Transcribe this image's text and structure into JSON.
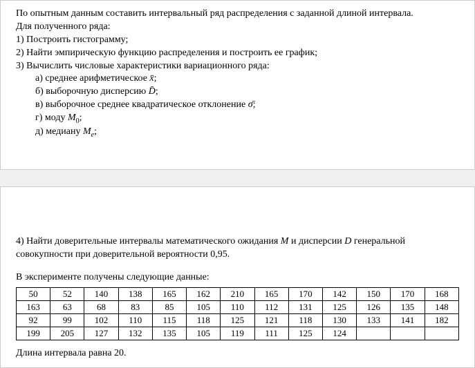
{
  "pageTop": {
    "intro1": "По опытным данным составить интервальный ряд распределения с заданной длиной интервала.",
    "intro2": "Для полученного ряда:",
    "item1": "1) Построить гистограмму;",
    "item2": "2) Найти эмпирическую функцию распределения и построить ее график;",
    "item3": "3) Вычислить числовые характеристики вариационного ряда:",
    "sub_a_pre": "а) среднее арифметическое ",
    "sub_a_var": "x̄",
    "sub_a_post": ";",
    "sub_b_pre": "б) выборочную дисперсию ",
    "sub_b_var": "D̄",
    "sub_b_post": ";",
    "sub_c_pre": "в) выборочное среднее квадратическое отклонение ",
    "sub_c_var": "σ̄",
    "sub_c_post": ";",
    "sub_d_pre": "г) моду ",
    "sub_d_var": "M",
    "sub_d_sub": "0",
    "sub_d_post": ";",
    "sub_e_pre": "д) медиану ",
    "sub_e_var": "M",
    "sub_e_sub": "e",
    "sub_e_post": ";"
  },
  "pageBottom": {
    "item4_a": "4) Найти доверительные интервалы математического ожидания ",
    "item4_var1": "M",
    "item4_b": " и дисперсии ",
    "item4_var2": "D",
    "item4_c": " генеральной совокупности при доверительной вероятности 0,95.",
    "experiment_text": "В эксперименте получены следующие данные:",
    "interval_text": "Длина интервала равна 20."
  },
  "dataTable": {
    "columns": 13,
    "rows": [
      [
        "50",
        "52",
        "140",
        "138",
        "165",
        "162",
        "210",
        "165",
        "170",
        "142",
        "150",
        "170",
        "168"
      ],
      [
        "163",
        "63",
        "68",
        "83",
        "85",
        "105",
        "110",
        "112",
        "131",
        "125",
        "126",
        "135",
        "148"
      ],
      [
        "92",
        "99",
        "102",
        "110",
        "115",
        "118",
        "125",
        "121",
        "118",
        "130",
        "133",
        "141",
        "182"
      ],
      [
        "199",
        "205",
        "127",
        "132",
        "135",
        "105",
        "119",
        "111",
        "125",
        "124",
        "",
        "",
        ""
      ]
    ],
    "cell_fontsize": 13,
    "border_color": "#000000",
    "background_color": "#ffffff"
  }
}
